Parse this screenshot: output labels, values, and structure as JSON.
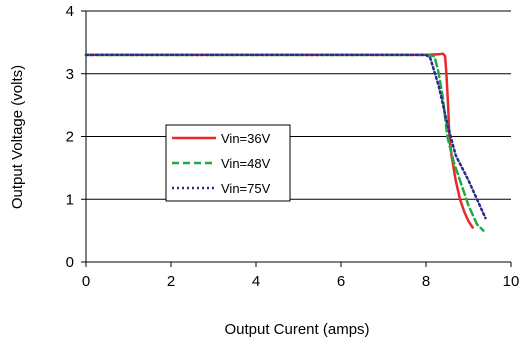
{
  "chart_data": {
    "type": "line",
    "xlabel": "Output Curent (amps)",
    "ylabel": "Output Voltage (volts)",
    "xlim": [
      0,
      10
    ],
    "ylim": [
      0,
      4
    ],
    "x_ticks": [
      "0",
      "2",
      "4",
      "6",
      "8",
      "10"
    ],
    "y_ticks": [
      "0",
      "1",
      "2",
      "3",
      "4"
    ],
    "grid": "horizontal",
    "legend_position": "center-left",
    "series": [
      {
        "name": "Vin=36V",
        "color": "#e8282a",
        "style": "solid",
        "points": [
          [
            0,
            3.3
          ],
          [
            8.0,
            3.3
          ],
          [
            8.3,
            3.31
          ],
          [
            8.4,
            3.32
          ],
          [
            8.45,
            3.28
          ],
          [
            8.48,
            3.0
          ],
          [
            8.52,
            2.5
          ],
          [
            8.55,
            2.0
          ],
          [
            8.6,
            1.7
          ],
          [
            8.7,
            1.3
          ],
          [
            8.8,
            1.0
          ],
          [
            8.9,
            0.8
          ],
          [
            9.0,
            0.65
          ],
          [
            9.1,
            0.55
          ]
        ]
      },
      {
        "name": "Vin=48V",
        "color": "#22a845",
        "style": "dashed",
        "points": [
          [
            0,
            3.3
          ],
          [
            8.0,
            3.3
          ],
          [
            8.2,
            3.28
          ],
          [
            8.3,
            3.0
          ],
          [
            8.4,
            2.6
          ],
          [
            8.5,
            2.0
          ],
          [
            8.65,
            1.6
          ],
          [
            8.8,
            1.3
          ],
          [
            9.0,
            0.9
          ],
          [
            9.2,
            0.6
          ],
          [
            9.35,
            0.5
          ]
        ]
      },
      {
        "name": "Vin=75V",
        "color": "#2b2b8c",
        "style": "dotted",
        "points": [
          [
            0,
            3.3
          ],
          [
            8.0,
            3.3
          ],
          [
            8.1,
            3.25
          ],
          [
            8.3,
            2.8
          ],
          [
            8.5,
            2.2
          ],
          [
            8.7,
            1.7
          ],
          [
            9.0,
            1.3
          ],
          [
            9.2,
            1.0
          ],
          [
            9.4,
            0.7
          ]
        ]
      }
    ]
  }
}
